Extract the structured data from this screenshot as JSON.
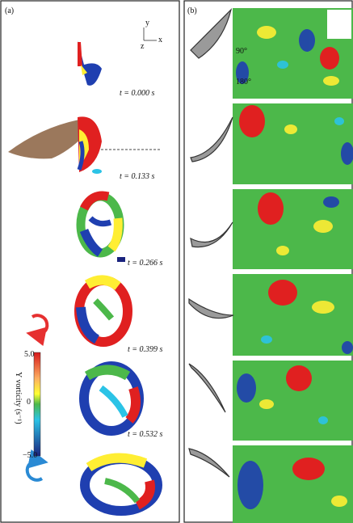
{
  "panel_a": {
    "label": "(a)",
    "axes": {
      "y": "y",
      "z": "z",
      "x": "x"
    },
    "times": [
      "t = 0.000 s",
      "t = 0.133 s",
      "t = 0.266 s",
      "t = 0.399 s",
      "t = 0.532 s"
    ],
    "colorbar": {
      "title": "Y vorticity (s⁻¹)",
      "ticks": [
        "5.0",
        "0",
        "−5.0"
      ]
    }
  },
  "panel_b": {
    "label": "(b)",
    "angles": [
      "90°",
      "180°"
    ]
  }
}
